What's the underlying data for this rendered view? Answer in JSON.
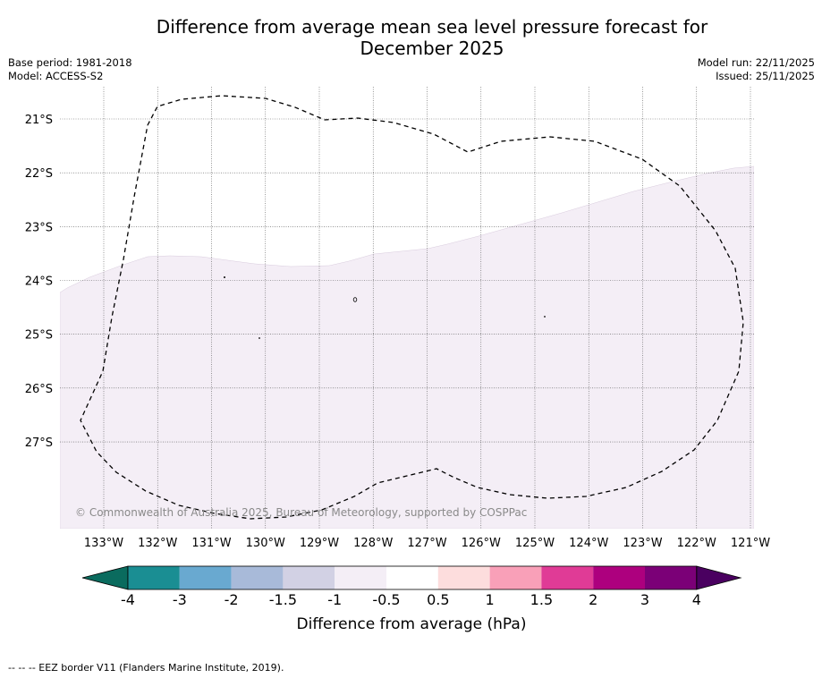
{
  "header": {
    "title_line1": "Difference from average mean sea level pressure forecast for",
    "title_line2": "December 2025",
    "base_period": "Base period: 1981-2018",
    "model": "Model: ACCESS-S2",
    "model_run": "Model run: 22/11/2025",
    "issued": "Issued: 25/11/2025"
  },
  "map": {
    "lon_ticks": [
      "133°W",
      "132°W",
      "131°W",
      "130°W",
      "129°W",
      "128°W",
      "127°W",
      "126°W",
      "125°W",
      "124°W",
      "123°W",
      "122°W",
      "121°W"
    ],
    "lat_ticks": [
      "21°S",
      "22°S",
      "23°S",
      "24°S",
      "25°S",
      "26°S",
      "27°S"
    ],
    "copyright": "© Commonwealth of Australia 2025, Bureau of Meteorology, supported by COSPPac",
    "fill_color": "#f4eef6",
    "fill_category": "-1 to -0.5"
  },
  "colorbar": {
    "title": "Difference from average (hPa)",
    "tick_labels": [
      "-4",
      "-3",
      "-2",
      "-1.5",
      "-1",
      "-0.5",
      "0.5",
      "1",
      "1.5",
      "2",
      "3",
      "4"
    ],
    "colors": [
      "#1a8e93",
      "#69a9d0",
      "#a8bad9",
      "#d2d1e4",
      "#f4eef6",
      "#ffffff",
      "#fddddd",
      "#f9a0b8",
      "#e03b96",
      "#ad007e",
      "#7b0077"
    ],
    "under_color": "#0a6b5e",
    "over_color": "#4a0060"
  },
  "footer": {
    "legend": "--  --  -- EEZ border V11 (Flanders Marine Institute, 2019)."
  }
}
